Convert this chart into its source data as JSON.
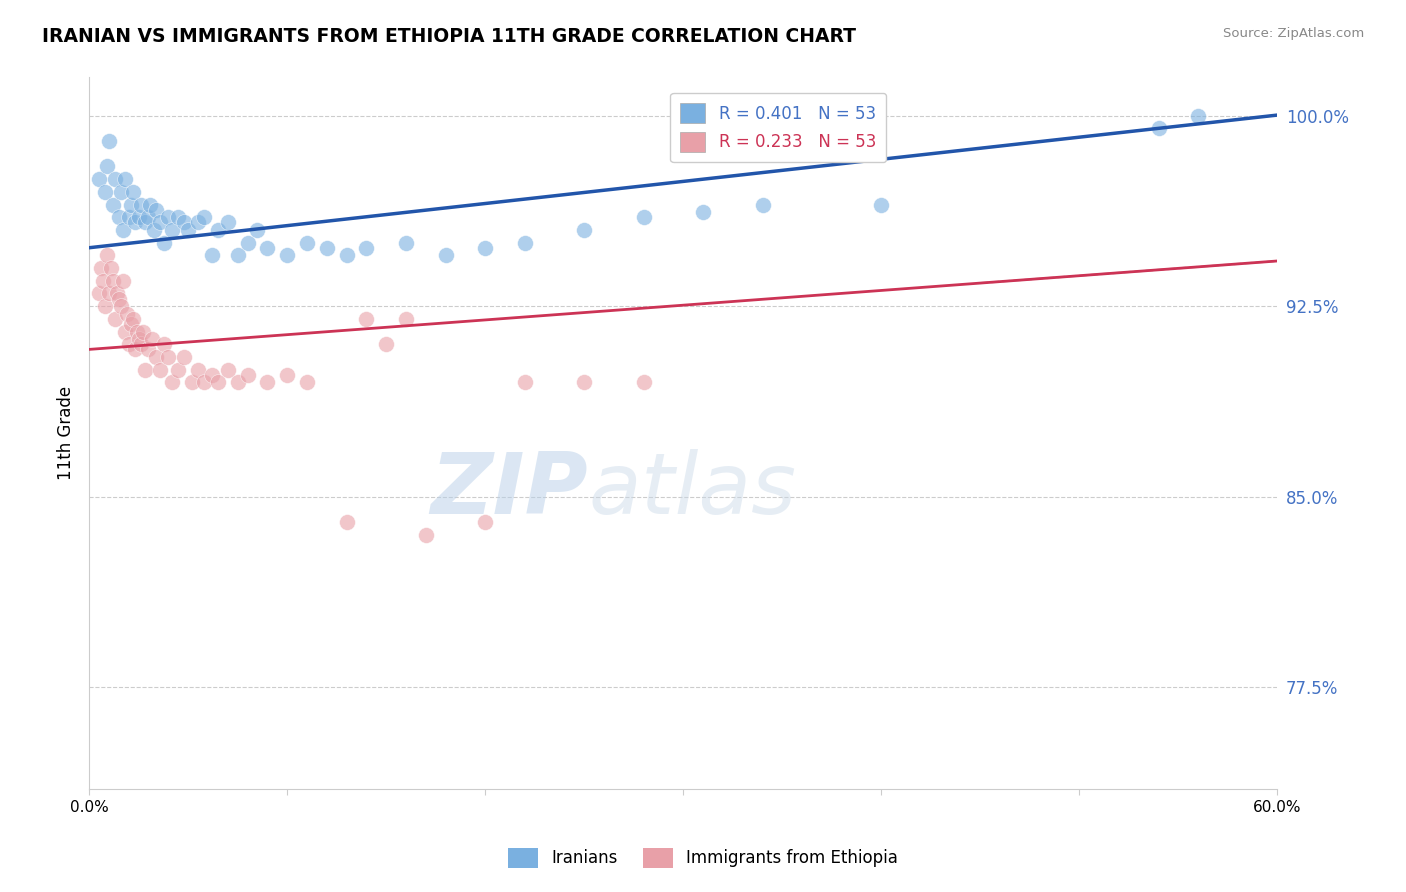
{
  "title": "IRANIAN VS IMMIGRANTS FROM ETHIOPIA 11TH GRADE CORRELATION CHART",
  "source_text": "Source: ZipAtlas.com",
  "ylabel": "11th Grade",
  "xlim": [
    0.0,
    0.6
  ],
  "ylim": [
    0.735,
    1.015
  ],
  "yticks": [
    0.775,
    0.85,
    0.925,
    1.0
  ],
  "ytick_labels": [
    "77.5%",
    "85.0%",
    "92.5%",
    "100.0%"
  ],
  "xticks": [
    0.0,
    0.1,
    0.2,
    0.3,
    0.4,
    0.5,
    0.6
  ],
  "xtick_labels": [
    "0.0%",
    "",
    "",
    "",
    "",
    "",
    "60.0%"
  ],
  "iranians_R": 0.401,
  "iranians_N": 53,
  "ethiopia_R": 0.233,
  "ethiopia_N": 53,
  "blue_color": "#7ab0e0",
  "pink_color": "#e8a0a8",
  "blue_line_color": "#2255aa",
  "pink_line_color": "#cc3355",
  "legend_label_blue": "Iranians",
  "legend_label_pink": "Immigrants from Ethiopia",
  "watermark_zip": "ZIP",
  "watermark_atlas": "atlas",
  "iranians_x": [
    0.005,
    0.008,
    0.009,
    0.01,
    0.012,
    0.013,
    0.015,
    0.016,
    0.017,
    0.018,
    0.02,
    0.021,
    0.022,
    0.023,
    0.025,
    0.026,
    0.028,
    0.03,
    0.031,
    0.033,
    0.034,
    0.036,
    0.038,
    0.04,
    0.042,
    0.045,
    0.048,
    0.05,
    0.055,
    0.058,
    0.062,
    0.065,
    0.07,
    0.075,
    0.08,
    0.085,
    0.09,
    0.1,
    0.11,
    0.12,
    0.13,
    0.14,
    0.16,
    0.18,
    0.2,
    0.22,
    0.25,
    0.28,
    0.31,
    0.34,
    0.4,
    0.54,
    0.56
  ],
  "iranians_y": [
    0.975,
    0.97,
    0.98,
    0.99,
    0.965,
    0.975,
    0.96,
    0.97,
    0.955,
    0.975,
    0.96,
    0.965,
    0.97,
    0.958,
    0.96,
    0.965,
    0.958,
    0.96,
    0.965,
    0.955,
    0.963,
    0.958,
    0.95,
    0.96,
    0.955,
    0.96,
    0.958,
    0.955,
    0.958,
    0.96,
    0.945,
    0.955,
    0.958,
    0.945,
    0.95,
    0.955,
    0.948,
    0.945,
    0.95,
    0.948,
    0.945,
    0.948,
    0.95,
    0.945,
    0.948,
    0.95,
    0.955,
    0.96,
    0.962,
    0.965,
    0.965,
    0.995,
    1.0
  ],
  "ethiopia_x": [
    0.005,
    0.006,
    0.007,
    0.008,
    0.009,
    0.01,
    0.011,
    0.012,
    0.013,
    0.014,
    0.015,
    0.016,
    0.017,
    0.018,
    0.019,
    0.02,
    0.021,
    0.022,
    0.023,
    0.024,
    0.025,
    0.026,
    0.027,
    0.028,
    0.03,
    0.032,
    0.034,
    0.036,
    0.038,
    0.04,
    0.042,
    0.045,
    0.048,
    0.052,
    0.055,
    0.058,
    0.062,
    0.065,
    0.07,
    0.075,
    0.08,
    0.09,
    0.1,
    0.11,
    0.13,
    0.15,
    0.17,
    0.2,
    0.22,
    0.25,
    0.28,
    0.14,
    0.16
  ],
  "ethiopia_y": [
    0.93,
    0.94,
    0.935,
    0.925,
    0.945,
    0.93,
    0.94,
    0.935,
    0.92,
    0.93,
    0.928,
    0.925,
    0.935,
    0.915,
    0.922,
    0.91,
    0.918,
    0.92,
    0.908,
    0.915,
    0.912,
    0.91,
    0.915,
    0.9,
    0.908,
    0.912,
    0.905,
    0.9,
    0.91,
    0.905,
    0.895,
    0.9,
    0.905,
    0.895,
    0.9,
    0.895,
    0.898,
    0.895,
    0.9,
    0.895,
    0.898,
    0.895,
    0.898,
    0.895,
    0.84,
    0.91,
    0.835,
    0.84,
    0.895,
    0.895,
    0.895,
    0.92,
    0.92
  ]
}
